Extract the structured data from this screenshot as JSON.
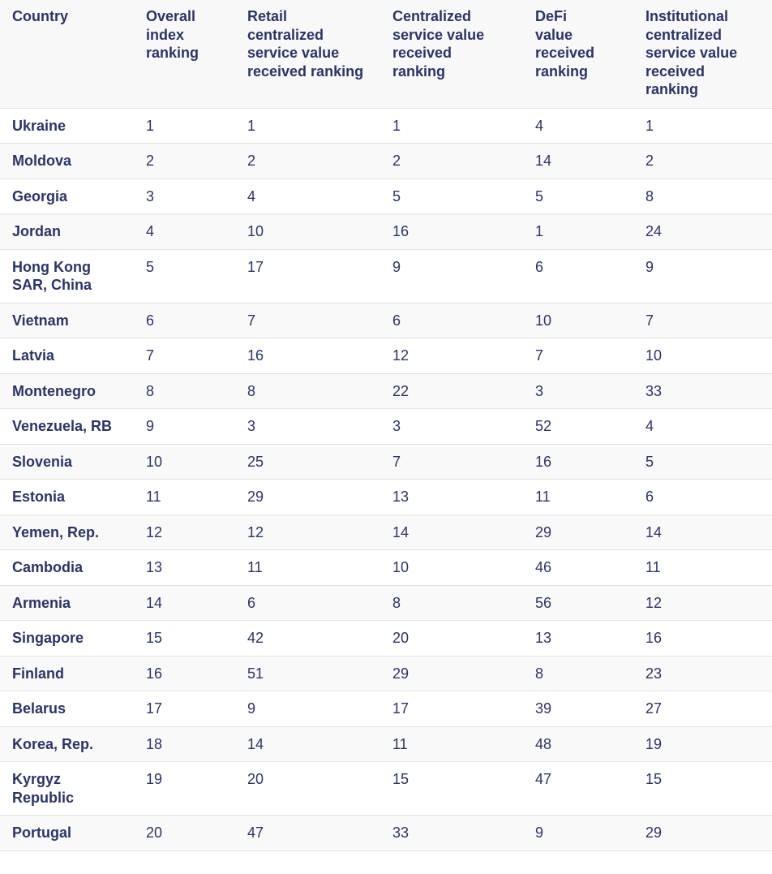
{
  "table": {
    "headers": [
      "Country",
      "Overall index ranking",
      "Retail centralized service value received ranking",
      "Centralized service value received ranking",
      "DeFi value received ranking",
      "Institutional centralized service value received ranking"
    ],
    "rows": [
      [
        "Ukraine",
        "1",
        "1",
        "1",
        "4",
        "1"
      ],
      [
        "Moldova",
        "2",
        "2",
        "2",
        "14",
        "2"
      ],
      [
        "Georgia",
        "3",
        "4",
        "5",
        "5",
        "8"
      ],
      [
        "Jordan",
        "4",
        "10",
        "16",
        "1",
        "24"
      ],
      [
        "Hong Kong SAR, China",
        "5",
        "17",
        "9",
        "6",
        "9"
      ],
      [
        "Vietnam",
        "6",
        "7",
        "6",
        "10",
        "7"
      ],
      [
        "Latvia",
        "7",
        "16",
        "12",
        "7",
        "10"
      ],
      [
        "Montenegro",
        "8",
        "8",
        "22",
        "3",
        "33"
      ],
      [
        "Venezuela, RB",
        "9",
        "3",
        "3",
        "52",
        "4"
      ],
      [
        "Slovenia",
        "10",
        "25",
        "7",
        "16",
        "5"
      ],
      [
        "Estonia",
        "11",
        "29",
        "13",
        "11",
        "6"
      ],
      [
        "Yemen, Rep.",
        "12",
        "12",
        "14",
        "29",
        "14"
      ],
      [
        "Cambodia",
        "13",
        "11",
        "10",
        "46",
        "11"
      ],
      [
        "Armenia",
        "14",
        "6",
        "8",
        "56",
        "12"
      ],
      [
        "Singapore",
        "15",
        "42",
        "20",
        "13",
        "16"
      ],
      [
        "Finland",
        "16",
        "51",
        "29",
        "8",
        "23"
      ],
      [
        "Belarus",
        "17",
        "9",
        "17",
        "39",
        "27"
      ],
      [
        "Korea, Rep.",
        "18",
        "14",
        "11",
        "48",
        "19"
      ],
      [
        "Kyrgyz Republic",
        "19",
        "20",
        "15",
        "47",
        "15"
      ],
      [
        "Portugal",
        "20",
        "47",
        "33",
        "9",
        "29"
      ]
    ]
  },
  "colors": {
    "text": "#2c3466",
    "header_bg": "#f8f8f8",
    "stripe_bg": "#f9f9f9",
    "border": "#e3e3e3"
  }
}
